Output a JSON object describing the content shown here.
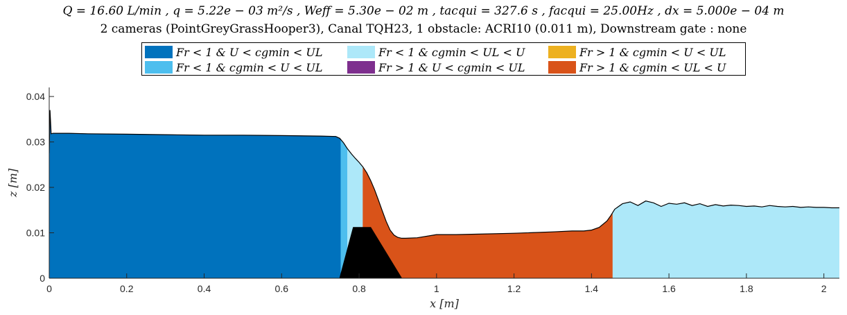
{
  "header": {
    "title_line1": "Q = 16.60 L/min , q = 5.22e − 03 m²/s , Weff = 5.30e − 02 m , tacqui = 327.6 s , facqui = 25.00Hz , dx = 5.000e − 04 m",
    "title_line2": "2 cameras (PointGreyGrassHooper3), Canal TQH23, 1 obstacle: ACRI10 (0.011 m), Downstream gate : none"
  },
  "legend": {
    "items": [
      {
        "label": "Fr < 1   &   U < cgmin < UL",
        "color": "#0072BD"
      },
      {
        "label": "Fr < 1   &   cgmin < UL < U",
        "color": "#ADE8F9"
      },
      {
        "label": "Fr > 1   &   cgmin < U < UL",
        "color": "#EDB120"
      },
      {
        "label": "Fr < 1   &   cgmin < U < UL",
        "color": "#4DBEEE"
      },
      {
        "label": "Fr > 1   &   U < cgmin < UL",
        "color": "#7E2F8E"
      },
      {
        "label": "Fr > 1   &   cgmin < UL < U",
        "color": "#D95319"
      }
    ]
  },
  "chart_data": {
    "type": "area",
    "xlabel": "x [m]",
    "ylabel": "z [m]",
    "xlim": [
      0,
      2.04
    ],
    "ylim": [
      0,
      0.042
    ],
    "x_ticks": [
      "0",
      "0.2",
      "0.4",
      "0.6",
      "0.8",
      "1",
      "1.2",
      "1.4",
      "1.6",
      "1.8",
      "2"
    ],
    "y_ticks": [
      "0",
      "0.01",
      "0.02",
      "0.03",
      "0.04"
    ],
    "grid": false,
    "free_surface": {
      "x": [
        0.0,
        0.002,
        0.005,
        0.01,
        0.05,
        0.1,
        0.2,
        0.3,
        0.4,
        0.5,
        0.6,
        0.7,
        0.74,
        0.75,
        0.76,
        0.77,
        0.78,
        0.79,
        0.8,
        0.81,
        0.82,
        0.83,
        0.84,
        0.85,
        0.86,
        0.87,
        0.88,
        0.89,
        0.9,
        0.91,
        0.92,
        0.95,
        1.0,
        1.05,
        1.1,
        1.2,
        1.3,
        1.35,
        1.38,
        1.4,
        1.42,
        1.44,
        1.45,
        1.46,
        1.48,
        1.5,
        1.52,
        1.54,
        1.56,
        1.58,
        1.6,
        1.62,
        1.64,
        1.66,
        1.68,
        1.7,
        1.72,
        1.74,
        1.76,
        1.78,
        1.8,
        1.82,
        1.84,
        1.86,
        1.88,
        1.9,
        1.92,
        1.94,
        1.96,
        1.98,
        2.0,
        2.02,
        2.04
      ],
      "z": [
        0.0275,
        0.037,
        0.0318,
        0.0319,
        0.0319,
        0.0318,
        0.0317,
        0.0316,
        0.0315,
        0.0315,
        0.0314,
        0.0313,
        0.0312,
        0.0308,
        0.0298,
        0.0285,
        0.0274,
        0.0264,
        0.0255,
        0.0245,
        0.0232,
        0.0215,
        0.0195,
        0.0172,
        0.0148,
        0.0125,
        0.0106,
        0.0095,
        0.009,
        0.0088,
        0.0088,
        0.0089,
        0.0096,
        0.0096,
        0.0097,
        0.0099,
        0.0102,
        0.0104,
        0.0104,
        0.0106,
        0.0112,
        0.0126,
        0.0138,
        0.0152,
        0.0164,
        0.0168,
        0.016,
        0.017,
        0.0166,
        0.0158,
        0.0165,
        0.0163,
        0.0166,
        0.016,
        0.0164,
        0.0158,
        0.0162,
        0.0159,
        0.0161,
        0.016,
        0.0158,
        0.0159,
        0.0157,
        0.016,
        0.0158,
        0.0157,
        0.0158,
        0.0156,
        0.0157,
        0.0156,
        0.0156,
        0.0155,
        0.0155
      ]
    },
    "regions": [
      {
        "regime": "Fr < 1 & U < cgmin < UL",
        "x_start": 0.0,
        "x_end": 0.753,
        "color": "#0072BD"
      },
      {
        "regime": "Fr < 1 & cgmin < U < UL",
        "x_start": 0.753,
        "x_end": 0.77,
        "color": "#4DBEEE"
      },
      {
        "regime": "Fr < 1 & cgmin < UL < U",
        "x_start": 0.77,
        "x_end": 0.81,
        "color": "#ADE8F9"
      },
      {
        "regime": "Fr > 1 & cgmin < UL < U",
        "x_start": 0.81,
        "x_end": 1.455,
        "color": "#D95319"
      },
      {
        "regime": "Fr < 1 & cgmin < UL < U",
        "x_start": 1.455,
        "x_end": 2.04,
        "color": "#ADE8F9"
      }
    ],
    "obstacle": {
      "name": "ACRI10",
      "x": [
        0.75,
        0.785,
        0.83,
        0.91
      ],
      "z": [
        0.0,
        0.0112,
        0.0112,
        0.0
      ]
    }
  }
}
